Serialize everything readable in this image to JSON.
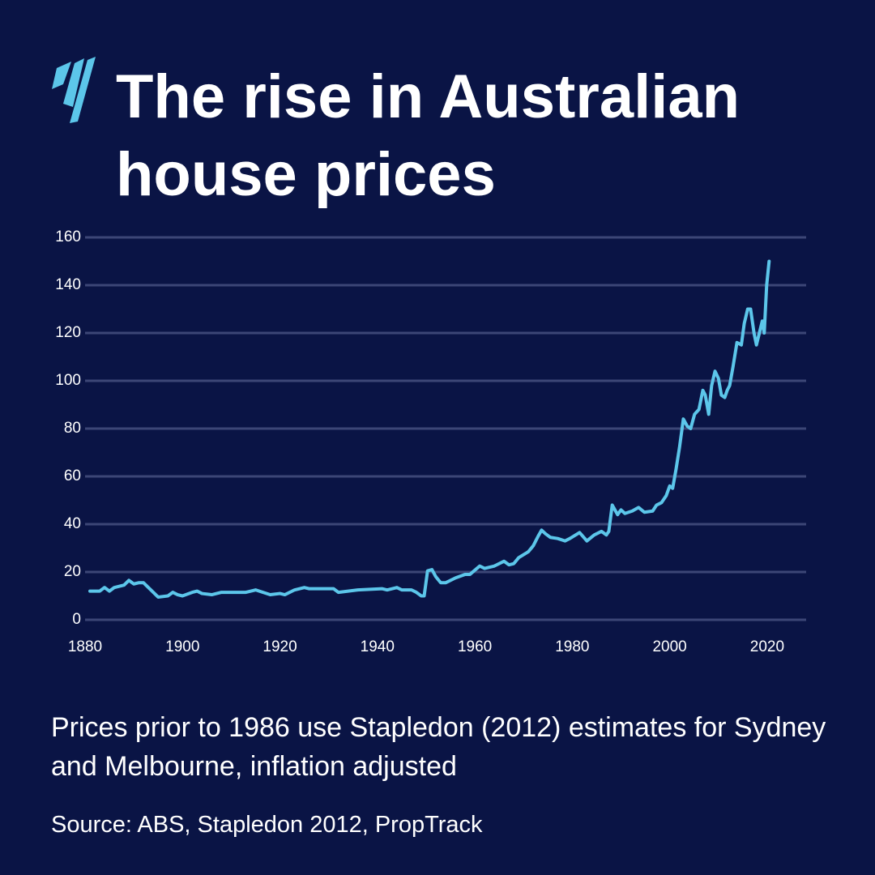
{
  "chart_data": {
    "type": "line",
    "title": "The rise in Australian house prices",
    "note": "Prices prior to 1986 use Stapledon (2012) estimates for Sydney and Melbourne, inflation adjusted",
    "source": "Source: ABS, Stapledon 2012, PropTrack",
    "xlim": [
      1880,
      2028
    ],
    "xticks": [
      1880,
      1900,
      1920,
      1940,
      1960,
      1980,
      2000,
      2020
    ],
    "ylim": [
      0,
      160
    ],
    "yticks": [
      0,
      20,
      40,
      60,
      80,
      100,
      120,
      140,
      160
    ],
    "grid": true,
    "series": [
      {
        "color": "#5cc6ea",
        "x": [
          1881,
          1883,
          1884,
          1885,
          1886,
          1888,
          1889,
          1890,
          1891,
          1892,
          1893,
          1895,
          1897,
          1898,
          1899,
          1900,
          1902,
          1903,
          1904,
          1906,
          1908,
          1913,
          1915,
          1918,
          1920,
          1921,
          1923,
          1925,
          1926,
          1931,
          1932,
          1936,
          1941,
          1942,
          1944,
          1945,
          1947,
          1948,
          1949,
          1949.6,
          1950.3,
          1951.2,
          1952,
          1953,
          1954,
          1956,
          1958,
          1959,
          1961,
          1962,
          1964,
          1966,
          1967,
          1968,
          1969,
          1971,
          1972,
          1973,
          1973.7,
          1974.5,
          1975.5,
          1977,
          1978.5,
          1979.5,
          1981.5,
          1983,
          1984.5,
          1986,
          1987,
          1987.5,
          1988.2,
          1989.3,
          1990,
          1990.8,
          1992.3,
          1993.6,
          1994.8,
          1996.5,
          1997.3,
          1998.3,
          1999.3,
          2000,
          2000.6,
          2001.3,
          2002,
          2002.8,
          2003.6,
          2004.3,
          2005.1,
          2006,
          2006.8,
          2007.3,
          2008,
          2008.6,
          2009.3,
          2010,
          2010.6,
          2011.3,
          2011.8,
          2012.3,
          2013,
          2013.8,
          2014.7,
          2015.3,
          2016,
          2016.6,
          2017.3,
          2017.8,
          2018.4,
          2019,
          2019.4,
          2019.9,
          2020.4
        ],
        "values": [
          12,
          12,
          13.5,
          12,
          13.5,
          14.5,
          16.5,
          15,
          15.5,
          15.5,
          13.5,
          9.5,
          10,
          11.5,
          10.5,
          10,
          11.5,
          12,
          11,
          10.5,
          11.5,
          11.5,
          12.5,
          10.5,
          11,
          10.5,
          12.5,
          13.5,
          13,
          13,
          11.5,
          12.5,
          13,
          12.5,
          13.5,
          12.5,
          12.5,
          11.5,
          10,
          10,
          20.5,
          21,
          18,
          15.5,
          15.5,
          17.5,
          19,
          19,
          22.5,
          21.5,
          22.5,
          24.5,
          23,
          23.5,
          26,
          28.5,
          31,
          35,
          37.5,
          36,
          34.5,
          34,
          33,
          34,
          36.5,
          33,
          35.5,
          37,
          35.5,
          37,
          48,
          44,
          46,
          44.5,
          45.5,
          47,
          45,
          45.5,
          48,
          49,
          52,
          56,
          55,
          63,
          72,
          84,
          81,
          80,
          86,
          88,
          96,
          94,
          86,
          98,
          104,
          101,
          94,
          93,
          96,
          98,
          106,
          116,
          115,
          124,
          130,
          130,
          120,
          115,
          120,
          125,
          120,
          140,
          150
        ]
      }
    ]
  }
}
